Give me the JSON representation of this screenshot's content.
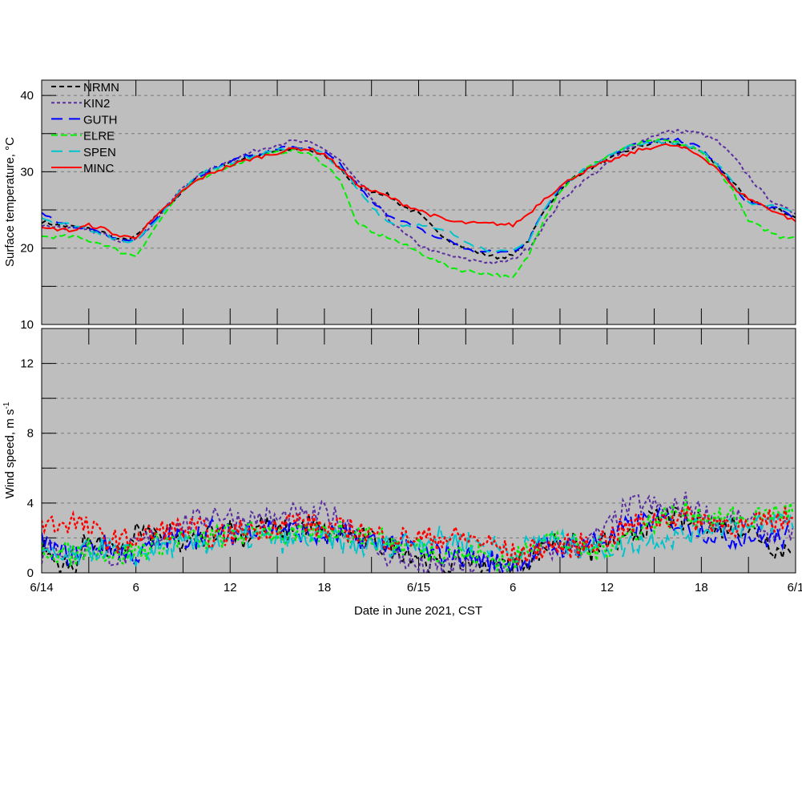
{
  "chart_data": [
    {
      "type": "line",
      "panel": "top",
      "ylabel": "Surface temperature, °C",
      "ylim": [
        10,
        42
      ],
      "yticks": [
        10,
        20,
        30,
        40
      ],
      "ygrid": [
        15,
        20,
        25,
        30,
        35,
        40
      ],
      "x_hours": "0..48 hourly from 6/14 00:00 CST",
      "series": [
        {
          "name": "NRMN",
          "color": "#000000",
          "values": [
            23.5,
            23,
            22.8,
            22.5,
            22,
            21,
            21.5,
            23.5,
            25.5,
            27.5,
            29.5,
            30.5,
            31.2,
            31.8,
            32.3,
            32.8,
            33,
            32.8,
            32,
            30.5,
            28,
            27.5,
            27,
            25.5,
            24.5,
            22.5,
            21,
            20,
            19.3,
            18.8,
            19,
            21,
            25,
            27.5,
            29.5,
            30.5,
            31.5,
            32.5,
            33.3,
            33.8,
            33.8,
            33.3,
            32.5,
            31,
            28.5,
            26.5,
            25.5,
            25,
            24
          ]
        },
        {
          "name": "KIN2",
          "color": "#5b2ea0",
          "values": [
            23,
            22.8,
            22.5,
            22.3,
            21.8,
            21,
            21.2,
            23,
            25.5,
            28,
            29.5,
            30.5,
            31.5,
            32.3,
            33,
            33.6,
            34,
            33.8,
            33,
            31.5,
            29,
            26.5,
            24,
            22,
            20.5,
            19.5,
            19,
            18.5,
            18.3,
            18,
            18.5,
            20,
            23,
            26,
            28,
            29.5,
            31,
            32.5,
            33.8,
            34.8,
            35.3,
            35.3,
            35,
            34,
            32,
            29.5,
            27,
            25.5,
            24.5
          ]
        },
        {
          "name": "GUTH",
          "color": "#0000ff",
          "values": [
            24.8,
            23.5,
            23,
            22.5,
            21.8,
            20.8,
            21,
            23.2,
            25.5,
            27.8,
            29.5,
            30.5,
            31.3,
            32,
            32.5,
            33,
            33.3,
            33,
            32.5,
            31,
            28.5,
            26,
            24.5,
            23.5,
            22.5,
            21.5,
            21,
            19.8,
            19.5,
            19.5,
            19.5,
            21,
            25,
            28,
            29.5,
            30.8,
            32,
            33,
            33.7,
            34,
            34.2,
            34,
            33,
            31,
            28,
            26,
            25.5,
            25,
            24
          ]
        },
        {
          "name": "ELRE",
          "color": "#00ee00",
          "values": [
            21.5,
            21.5,
            21.5,
            21,
            20.5,
            19.5,
            19,
            22,
            25,
            27.5,
            29,
            30,
            30.8,
            31.5,
            32,
            32.5,
            32.8,
            32.3,
            31,
            29,
            23.5,
            22,
            21.5,
            20.5,
            19.5,
            18.5,
            17.5,
            17,
            16.8,
            16.5,
            16,
            19,
            24,
            27.5,
            29.5,
            30.8,
            32,
            33,
            33.7,
            34,
            34,
            33.5,
            32.5,
            30.5,
            27.5,
            23.5,
            22.5,
            21.5,
            21.5
          ]
        },
        {
          "name": "SPEN",
          "color": "#00c4cc",
          "values": [
            24,
            23.3,
            23,
            22.5,
            21.8,
            20.8,
            21,
            23,
            25.5,
            27.8,
            29.5,
            30.5,
            31.2,
            31.8,
            32.3,
            32.8,
            33.2,
            33,
            32.3,
            30.5,
            28,
            25.5,
            23.5,
            23,
            23,
            22.5,
            22,
            21,
            20,
            19.5,
            19.5,
            21,
            25,
            28,
            29.5,
            30.8,
            32,
            33,
            33.6,
            34,
            33.8,
            33.5,
            32.8,
            31,
            28.5,
            26,
            25.5,
            25.5,
            24.8
          ]
        },
        {
          "name": "MINC",
          "color": "#ff0000",
          "values": [
            22.5,
            22.5,
            22.3,
            23,
            22.5,
            21.5,
            21.5,
            23.5,
            25.5,
            27.5,
            29,
            30,
            30.8,
            31.5,
            32,
            32.5,
            33,
            33,
            32.3,
            30.5,
            28.5,
            27.5,
            26.8,
            25.8,
            25,
            24.2,
            23.5,
            23.3,
            23.2,
            23.2,
            23,
            24.5,
            26.5,
            28,
            29.5,
            30.5,
            31.3,
            32,
            32.8,
            33.3,
            33.5,
            33,
            32,
            30.5,
            28,
            26.5,
            25.5,
            24.5,
            23.5
          ]
        }
      ]
    },
    {
      "type": "line",
      "panel": "bottom",
      "ylabel": "Wind speed, m s",
      "ylabel_sup": "-1",
      "xlabel": "Date in June 2021, CST",
      "ylim": [
        0,
        14
      ],
      "yticks": [
        0,
        4,
        8,
        12
      ],
      "ygrid": [
        2,
        4,
        6,
        8,
        10,
        12
      ],
      "xticks": [
        "6/14",
        "6",
        "12",
        "18",
        "6/15",
        "6",
        "12",
        "18",
        "6/1"
      ],
      "xtick_hours": [
        0,
        6,
        12,
        18,
        24,
        30,
        36,
        42,
        48
      ],
      "xlim_hours": [
        0,
        48
      ],
      "series": [
        {
          "name": "NRMN",
          "color": "#000000",
          "values": [
            1.5,
            0.5,
            0.2,
            2.2,
            1.5,
            0.8,
            2.5,
            2.0,
            2.2,
            1.5,
            1.8,
            2.5,
            2.5,
            2.0,
            2.8,
            2.3,
            2.5,
            2.8,
            2.2,
            2.3,
            2.0,
            1.8,
            1.5,
            1.3,
            1.0,
            0.5,
            0.3,
            0.8,
            0.6,
            0.4,
            0.5,
            0.8,
            1.5,
            2.0,
            1.5,
            1.2,
            1.8,
            1.5,
            2.5,
            3.0,
            3.2,
            2.8,
            3.0,
            2.5,
            2.8,
            2.5,
            2.0,
            1.2,
            1.8
          ]
        },
        {
          "name": "KIN2",
          "color": "#5b2ea0",
          "values": [
            1.0,
            1.5,
            1.0,
            1.5,
            1.2,
            0.8,
            1.5,
            2.0,
            2.2,
            2.8,
            3.0,
            3.5,
            3.2,
            3.0,
            3.2,
            3.0,
            3.3,
            3.0,
            3.5,
            3.0,
            2.5,
            1.5,
            1.0,
            0.8,
            0.3,
            0.2,
            0.5,
            0.3,
            0.5,
            0.4,
            0.2,
            0.8,
            1.2,
            1.5,
            1.5,
            1.8,
            2.5,
            3.5,
            4.0,
            3.8,
            3.5,
            4.0,
            3.5,
            3.0,
            3.0,
            2.8,
            2.5,
            2.2,
            2.5
          ]
        },
        {
          "name": "GUTH",
          "color": "#0000ff",
          "values": [
            1.8,
            1.2,
            1.0,
            1.5,
            1.5,
            1.2,
            1.0,
            1.5,
            2.0,
            2.0,
            2.2,
            2.5,
            2.2,
            2.5,
            2.8,
            2.5,
            2.5,
            2.3,
            2.0,
            2.2,
            2.0,
            1.8,
            1.8,
            1.5,
            1.2,
            1.0,
            1.2,
            1.0,
            0.8,
            0.6,
            0.5,
            0.8,
            1.5,
            1.5,
            1.5,
            1.8,
            2.0,
            2.5,
            2.8,
            3.0,
            3.0,
            2.8,
            2.5,
            2.2,
            2.0,
            2.2,
            2.0,
            2.0,
            2.2
          ]
        },
        {
          "name": "ELRE",
          "color": "#00ee00",
          "values": [
            1.5,
            1.2,
            1.0,
            1.5,
            1.2,
            1.0,
            1.3,
            1.5,
            1.8,
            2.0,
            1.8,
            2.0,
            2.2,
            2.2,
            2.5,
            2.3,
            2.0,
            2.2,
            2.3,
            2.5,
            2.3,
            2.0,
            1.8,
            1.5,
            1.5,
            1.2,
            1.3,
            1.0,
            1.0,
            0.8,
            0.5,
            1.5,
            2.2,
            1.8,
            1.5,
            1.2,
            1.5,
            2.0,
            2.5,
            3.0,
            3.2,
            3.5,
            3.3,
            3.0,
            3.2,
            3.0,
            3.3,
            3.5,
            3.5
          ]
        },
        {
          "name": "SPEN",
          "color": "#00c4cc",
          "values": [
            1.0,
            0.8,
            0.8,
            1.2,
            1.5,
            1.0,
            1.0,
            1.3,
            1.5,
            1.5,
            1.6,
            1.8,
            2.0,
            2.0,
            2.0,
            1.8,
            1.8,
            2.0,
            2.0,
            1.8,
            1.5,
            1.5,
            1.6,
            1.8,
            1.8,
            2.0,
            2.0,
            1.8,
            1.6,
            1.5,
            1.2,
            1.5,
            2.0,
            1.8,
            1.5,
            1.5,
            1.5,
            1.5,
            1.8,
            2.0,
            2.0,
            2.2,
            2.5,
            2.8,
            2.8,
            2.5,
            2.8,
            3.0,
            3.0
          ]
        },
        {
          "name": "MINC",
          "color": "#ff0000",
          "values": [
            2.8,
            2.8,
            3.0,
            2.5,
            2.0,
            1.8,
            2.0,
            2.2,
            2.5,
            2.5,
            2.5,
            2.0,
            2.2,
            2.5,
            2.5,
            2.8,
            3.0,
            2.8,
            2.5,
            2.5,
            2.5,
            2.2,
            2.0,
            2.0,
            2.0,
            2.0,
            2.0,
            2.0,
            1.8,
            1.5,
            1.0,
            1.2,
            1.5,
            1.5,
            1.5,
            1.8,
            2.0,
            2.5,
            2.8,
            3.0,
            3.2,
            3.2,
            3.0,
            3.0,
            2.8,
            2.5,
            3.0,
            3.0,
            3.2
          ]
        }
      ]
    }
  ]
}
